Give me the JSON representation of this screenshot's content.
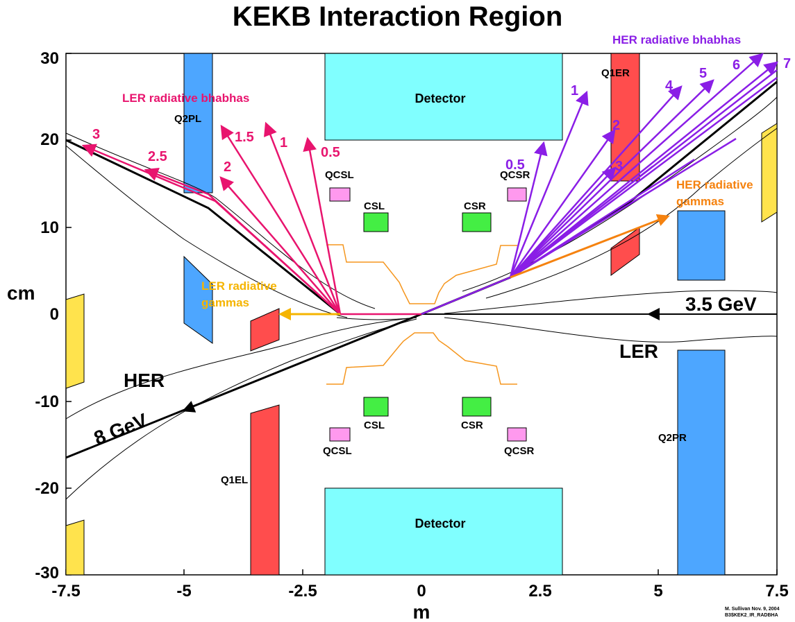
{
  "title": "KEKB Interaction Region",
  "axes": {
    "xlabel": "m",
    "ylabel": "cm",
    "xticks": [
      "-7.5",
      "-5",
      "-2.5",
      "0",
      "2.5",
      "5",
      "7.5"
    ],
    "yticks": [
      "30",
      "20",
      "10",
      "0",
      "-10",
      "-20",
      "-30"
    ],
    "xlim": [
      -7.5,
      7.5
    ],
    "ylim": [
      -30,
      30
    ]
  },
  "labels": {
    "detector_top": "Detector",
    "detector_bottom": "Detector",
    "q2pl": "Q2PL",
    "q1er": "Q1ER",
    "q1el": "Q1EL",
    "q2pr": "Q2PR",
    "qcsl_top": "QCSL",
    "qcsr_top": "QCSR",
    "qcsl_bottom": "QCSL",
    "qcsr_bottom": "QCSR",
    "csl_top": "CSL",
    "csr_top": "CSR",
    "csl_bottom": "CSL",
    "csr_bottom": "CSR",
    "her": "HER",
    "ler": "LER",
    "her_energy": "8 GeV",
    "ler_energy": "3.5 GeV",
    "ler_bhabhas": "LER radiative bhabhas",
    "her_bhabhas": "HER radiative bhabhas",
    "ler_gammas_1": "LER radiative",
    "ler_gammas_2": "gammas",
    "her_gammas_1": "HER radiative",
    "her_gammas_2": "gammas",
    "credit_1": "M. Sullivan Nov. 9, 2004",
    "credit_2": "B3$KEK2_IR_RADBHA"
  },
  "ler_rays": [
    "3",
    "2.5",
    "2",
    "1.5",
    "1",
    "0.5"
  ],
  "her_rays": [
    "0.5",
    "1",
    "2",
    "3",
    "4",
    "5",
    "6",
    "7"
  ],
  "colors": {
    "ler": "#e8146e",
    "her": "#8a1ee6",
    "her_gamma": "#f5820f",
    "ler_gamma": "#f5b400",
    "detector": "#80ffff",
    "quad": "#4da6ff",
    "q1": "#ff4d4d",
    "qcs": "#ff99ee",
    "cs": "#44ee44",
    "side": "#ffe34d",
    "mask": "#f5961e"
  }
}
